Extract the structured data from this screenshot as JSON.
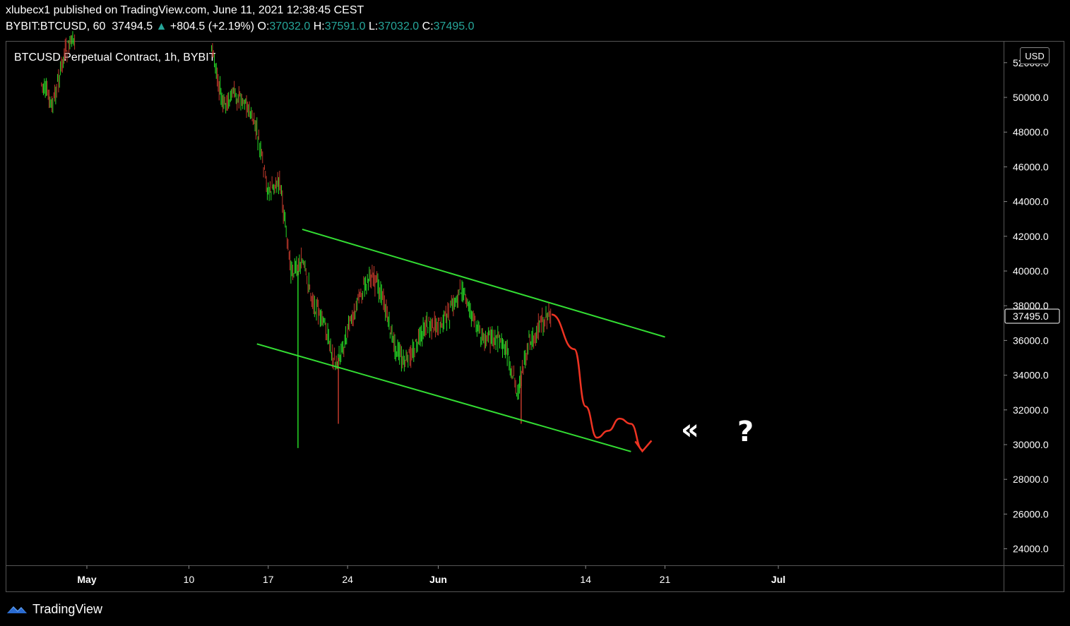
{
  "header": {
    "publish_line": "xlubecx1 published on TradingView.com, June 11, 2021 12:38:45 CEST",
    "symbol": "BYBIT:BTCUSD, 60",
    "last": "37494.5",
    "change_arrow": "▲",
    "change": "+804.5 (+2.19%)",
    "o_label": "O:",
    "o_value": "37032.0",
    "h_label": "H:",
    "h_value": "37591.0",
    "l_label": "L:",
    "l_value": "37032.0",
    "c_label": "C:",
    "c_value": "37495.0"
  },
  "chart_title": "BTCUSD Perpetual Contract, 1h, BYBIT",
  "currency_button": "USD",
  "price_tag": "37495.0",
  "annotations": {
    "arrows": "«",
    "question": "?"
  },
  "footer": {
    "brand": "TradingView"
  },
  "colors": {
    "up": "#26a69a",
    "green_line": "#33dd33",
    "red_path": "#ee3322",
    "bg": "#000000",
    "axis_text": "#ffffff"
  },
  "chart_data": {
    "type": "line",
    "title": "BTCUSD Perpetual Contract, 1h, BYBIT",
    "ylim": [
      23000,
      53000
    ],
    "y_ticks": [
      "24000.0",
      "26000.0",
      "28000.0",
      "30000.0",
      "32000.0",
      "34000.0",
      "36000.0",
      "38000.0",
      "40000.0",
      "42000.0",
      "44000.0",
      "46000.0",
      "48000.0",
      "50000.0",
      "52000.0"
    ],
    "x_ticks": [
      {
        "label": "May",
        "date": "2021-05-01",
        "bold": true
      },
      {
        "label": "10",
        "date": "2021-05-10",
        "bold": false
      },
      {
        "label": "17",
        "date": "2021-05-17",
        "bold": false
      },
      {
        "label": "24",
        "date": "2021-05-24",
        "bold": false
      },
      {
        "label": "Jun",
        "date": "2021-06-01",
        "bold": true
      },
      {
        "label": "14",
        "date": "2021-06-14",
        "bold": false
      },
      {
        "label": "21",
        "date": "2021-06-21",
        "bold": false
      },
      {
        "label": "Jul",
        "date": "2021-07-01",
        "bold": true
      }
    ],
    "price_path": [
      [
        "2021-04-27",
        50800
      ],
      [
        "2021-04-28",
        49500
      ],
      [
        "2021-04-29",
        52500
      ],
      [
        "2021-04-30",
        53500
      ],
      [
        "2021-05-12",
        53000
      ],
      [
        "2021-05-13",
        49500
      ],
      [
        "2021-05-14",
        50200
      ],
      [
        "2021-05-15",
        49800
      ],
      [
        "2021-05-16",
        48000
      ],
      [
        "2021-05-17",
        44500
      ],
      [
        "2021-05-18",
        45200
      ],
      [
        "2021-05-19",
        40000
      ],
      [
        "2021-05-20",
        40500
      ],
      [
        "2021-05-21",
        38200
      ],
      [
        "2021-05-22",
        36800
      ],
      [
        "2021-05-23",
        34500
      ],
      [
        "2021-05-24",
        36500
      ],
      [
        "2021-05-25",
        38500
      ],
      [
        "2021-05-26",
        39800
      ],
      [
        "2021-05-27",
        38800
      ],
      [
        "2021-05-28",
        36000
      ],
      [
        "2021-05-29",
        34600
      ],
      [
        "2021-05-30",
        35600
      ],
      [
        "2021-05-31",
        37000
      ],
      [
        "2021-06-01",
        36800
      ],
      [
        "2021-06-02",
        37500
      ],
      [
        "2021-06-03",
        39000
      ],
      [
        "2021-06-04",
        37400
      ],
      [
        "2021-06-05",
        36000
      ],
      [
        "2021-06-06",
        36200
      ],
      [
        "2021-06-07",
        35500
      ],
      [
        "2021-06-08",
        33000
      ],
      [
        "2021-06-09",
        35800
      ],
      [
        "2021-06-10",
        37000
      ],
      [
        "2021-06-11",
        37495
      ]
    ],
    "channel_lines": [
      {
        "name": "upper",
        "start": [
          "2021-05-20",
          42400
        ],
        "end": [
          "2021-06-21",
          36200
        ]
      },
      {
        "name": "lower",
        "start": [
          "2021-05-16",
          35800
        ],
        "end": [
          "2021-06-18",
          29600
        ]
      }
    ],
    "projection": [
      [
        "2021-06-11",
        37495
      ],
      [
        "2021-06-13",
        35500
      ],
      [
        "2021-06-14",
        32200
      ],
      [
        "2021-06-15",
        30400
      ],
      [
        "2021-06-16",
        30800
      ],
      [
        "2021-06-17",
        31500
      ],
      [
        "2021-06-18",
        31200
      ],
      [
        "2021-06-19",
        29700
      ]
    ]
  }
}
